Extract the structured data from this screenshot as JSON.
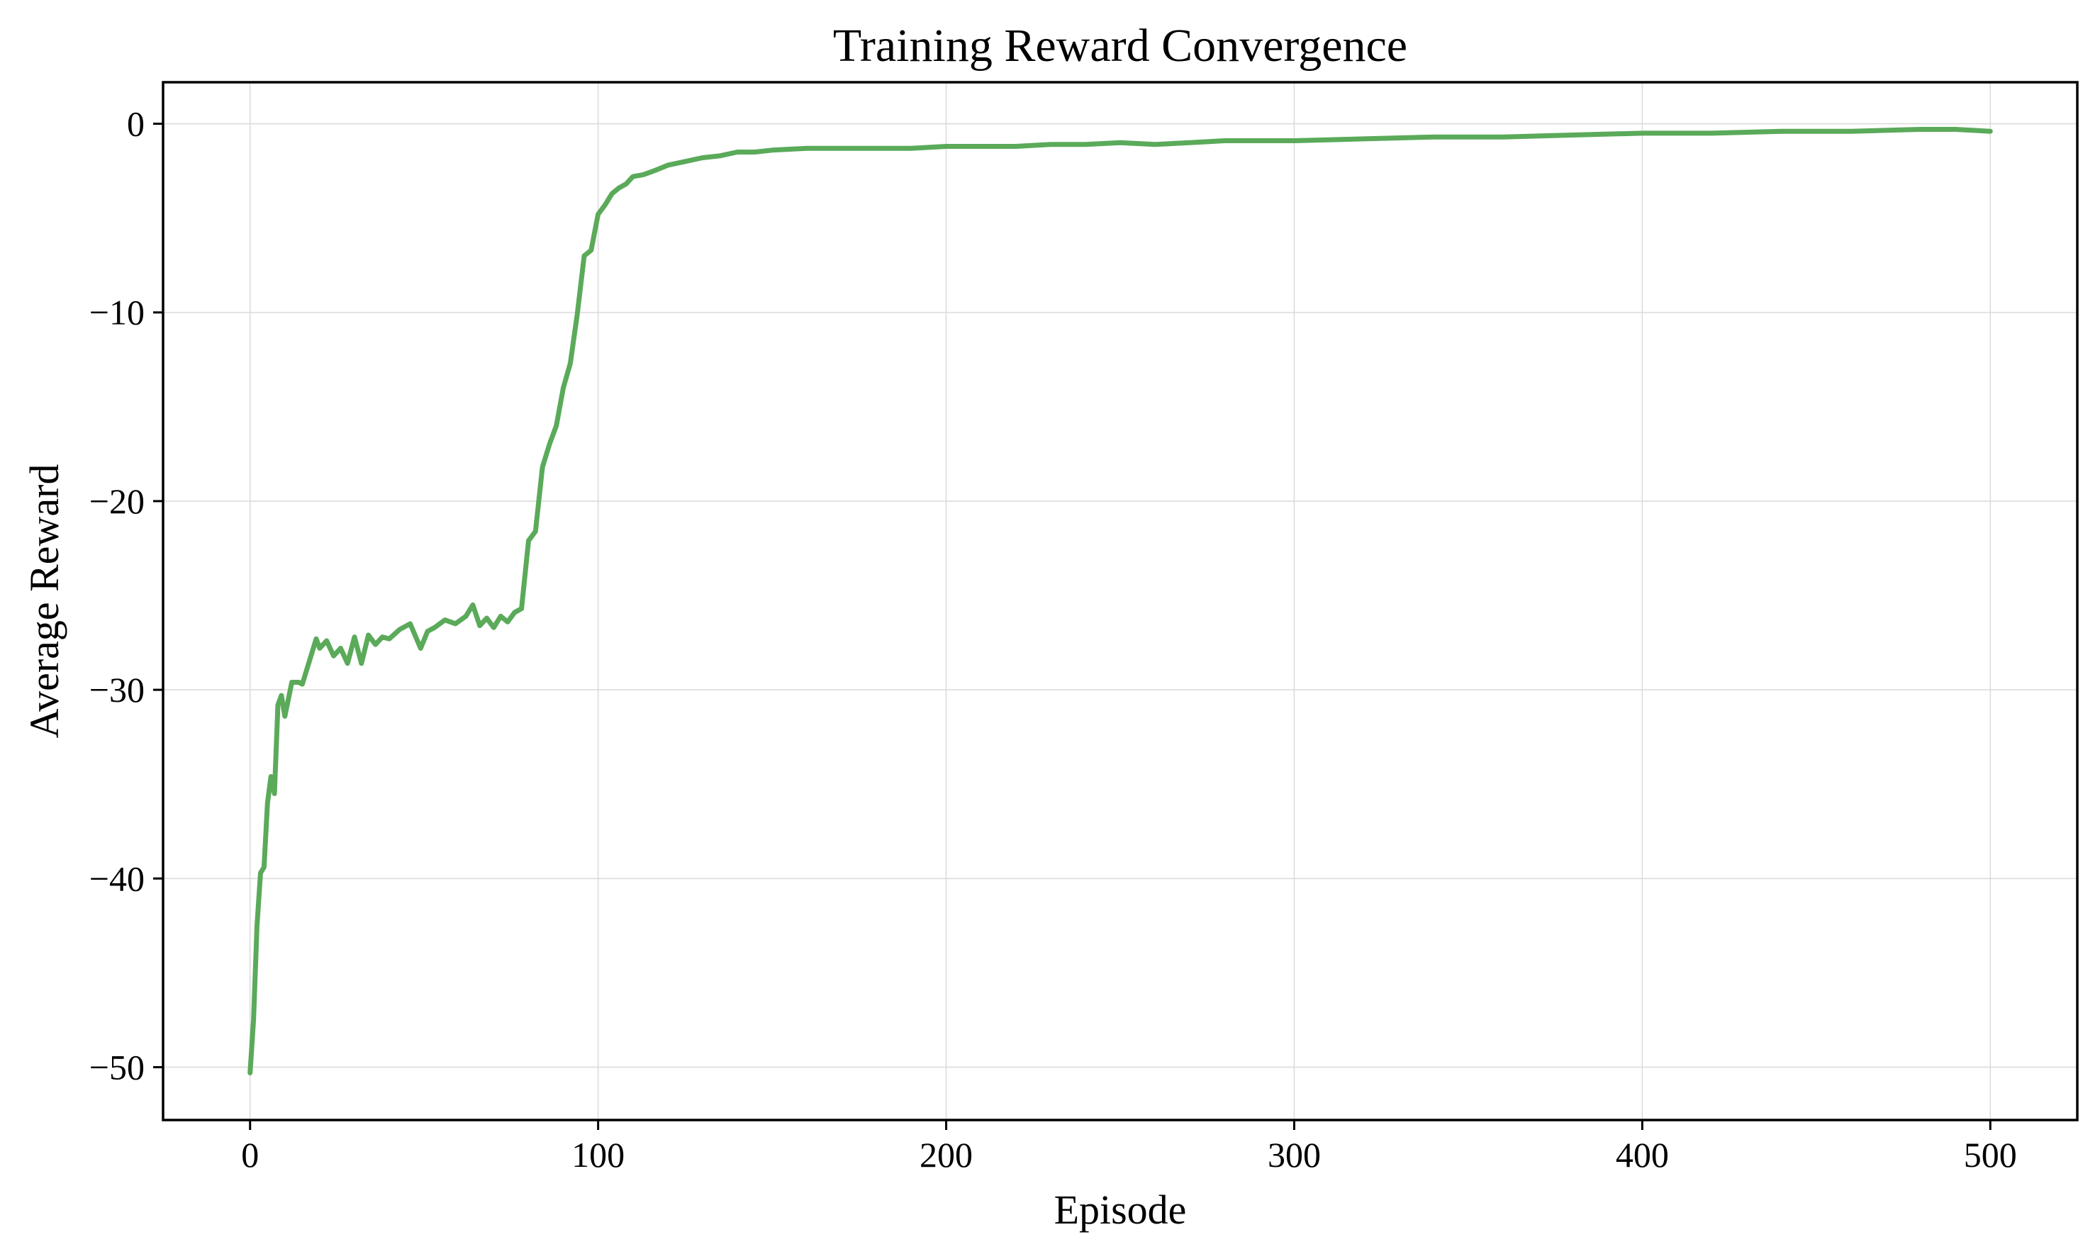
{
  "chart_data": {
    "type": "line",
    "title": "Training Reward Convergence",
    "xlabel": "Episode",
    "ylabel": "Average Reward",
    "xlim": [
      -25,
      525
    ],
    "ylim": [
      -52.8,
      2.2
    ],
    "xticks": [
      0,
      100,
      200,
      300,
      400,
      500
    ],
    "yticks": [
      0,
      -10,
      -20,
      -30,
      -40,
      -50
    ],
    "xtick_labels": [
      "0",
      "100",
      "200",
      "300",
      "400",
      "500"
    ],
    "ytick_labels": [
      "0",
      "−10",
      "−20",
      "−30",
      "−40",
      "−50"
    ],
    "grid": true,
    "legend": "none",
    "colors": {
      "series": "#5aaa5a",
      "grid": "#dcdcdc",
      "axis": "#000000"
    },
    "series": [
      {
        "x": [
          0,
          1,
          2,
          3,
          4,
          5,
          6,
          7,
          8,
          9,
          10,
          12,
          14,
          15,
          17,
          19,
          20,
          22,
          24,
          26,
          28,
          30,
          32,
          34,
          36,
          38,
          40,
          43,
          46,
          49,
          51,
          53,
          56,
          59,
          62,
          64,
          66,
          68,
          70,
          72,
          74,
          76,
          78,
          80,
          82,
          84,
          86,
          88,
          90,
          92,
          94,
          96,
          98,
          100,
          102,
          104,
          106,
          108,
          110,
          113,
          116,
          120,
          125,
          130,
          135,
          140,
          145,
          150,
          160,
          170,
          180,
          190,
          200,
          210,
          220,
          230,
          240,
          250,
          260,
          270,
          280,
          290,
          300,
          320,
          340,
          360,
          380,
          400,
          420,
          440,
          460,
          480,
          490,
          500
        ],
        "y": [
          -50.3,
          -47.5,
          -42.5,
          -39.7,
          -39.4,
          -36.0,
          -34.6,
          -35.5,
          -30.8,
          -30.3,
          -31.4,
          -29.6,
          -29.6,
          -29.7,
          -28.5,
          -27.3,
          -27.8,
          -27.4,
          -28.2,
          -27.8,
          -28.6,
          -27.2,
          -28.6,
          -27.1,
          -27.6,
          -27.2,
          -27.3,
          -26.8,
          -26.5,
          -27.8,
          -26.9,
          -26.7,
          -26.3,
          -26.5,
          -26.1,
          -25.5,
          -26.6,
          -26.2,
          -26.7,
          -26.1,
          -26.4,
          -25.9,
          -25.7,
          -22.1,
          -21.6,
          -18.2,
          -17.0,
          -16.0,
          -14.0,
          -12.7,
          -10.1,
          -7.0,
          -6.7,
          -4.8,
          -4.3,
          -3.7,
          -3.4,
          -3.2,
          -2.8,
          -2.7,
          -2.5,
          -2.2,
          -2.0,
          -1.8,
          -1.7,
          -1.5,
          -1.5,
          -1.4,
          -1.3,
          -1.3,
          -1.3,
          -1.3,
          -1.2,
          -1.2,
          -1.2,
          -1.1,
          -1.1,
          -1.0,
          -1.1,
          -1.0,
          -0.9,
          -0.9,
          -0.9,
          -0.8,
          -0.7,
          -0.7,
          -0.6,
          -0.5,
          -0.5,
          -0.4,
          -0.4,
          -0.3,
          -0.3,
          -0.4
        ]
      }
    ]
  }
}
